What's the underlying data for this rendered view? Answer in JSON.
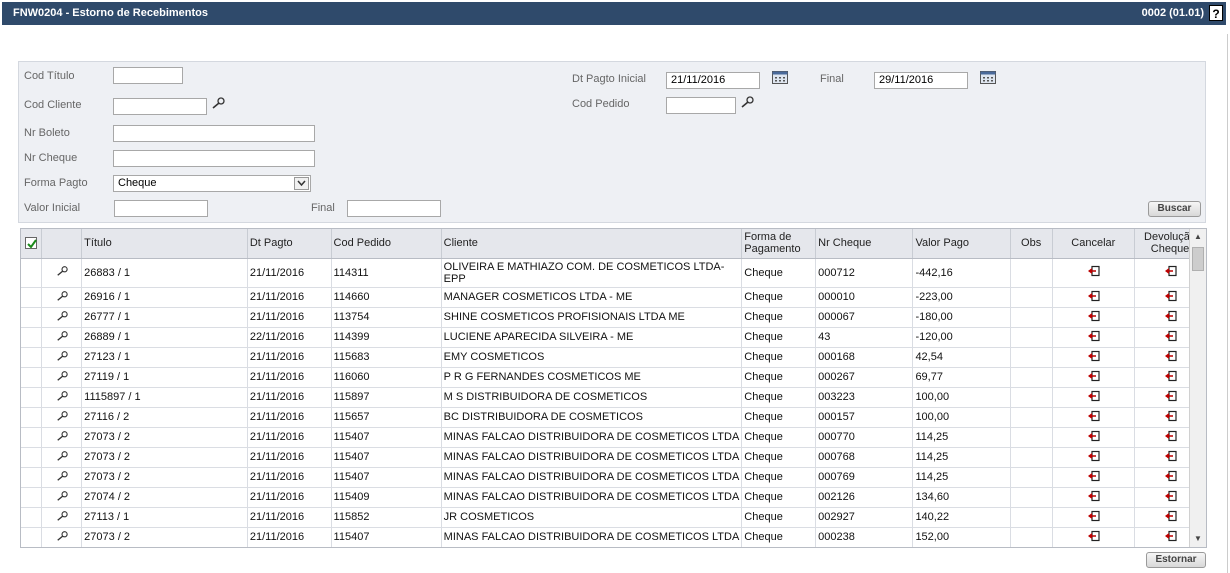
{
  "window": {
    "title": "FNW0204 - Estorno de Recebimentos",
    "code": "0002 (01.01)",
    "help": "?"
  },
  "filters": {
    "cod_titulo": {
      "label": "Cod Título",
      "value": ""
    },
    "cod_cliente": {
      "label": "Cod Cliente",
      "value": ""
    },
    "nr_boleto": {
      "label": "Nr Boleto",
      "value": ""
    },
    "nr_cheque": {
      "label": "Nr Cheque",
      "value": ""
    },
    "forma_pagto": {
      "label": "Forma Pagto",
      "value": "Cheque"
    },
    "valor_inicial": {
      "label": "Valor Inicial",
      "value": ""
    },
    "valor_final": {
      "label": "Final",
      "value": ""
    },
    "dt_pagto_inicial": {
      "label": "Dt Pagto Inicial",
      "value": "21/11/2016"
    },
    "dt_pagto_final": {
      "label": "Final",
      "value": "29/11/2016"
    },
    "cod_pedido": {
      "label": "Cod Pedido",
      "value": ""
    },
    "buscar_label": "Buscar"
  },
  "table": {
    "headers": {
      "titulo": "Título",
      "dt_pagto": "Dt Pagto",
      "cod_pedido": "Cod Pedido",
      "cliente": "Cliente",
      "forma": "Forma de Pagamento",
      "nr_cheque": "Nr Cheque",
      "valor": "Valor Pago",
      "obs": "Obs",
      "cancelar": "Cancelar",
      "devolucao": "Devolução Cheque"
    },
    "rows": [
      {
        "titulo": "26883 / 1",
        "dt": "21/11/2016",
        "pedido": "114311",
        "cliente": "OLIVEIRA E MATHIAZO COM. DE COSMETICOS LTDA-EPP",
        "forma": "Cheque",
        "cheque": "000712",
        "valor": "-442,16",
        "obs": ""
      },
      {
        "titulo": "26916 / 1",
        "dt": "21/11/2016",
        "pedido": "114660",
        "cliente": "MANAGER COSMETICOS LTDA - ME",
        "forma": "Cheque",
        "cheque": "000010",
        "valor": "-223,00",
        "obs": ""
      },
      {
        "titulo": "26777 / 1",
        "dt": "21/11/2016",
        "pedido": "113754",
        "cliente": "SHINE COSMETICOS PROFISIONAIS LTDA ME",
        "forma": "Cheque",
        "cheque": "000067",
        "valor": "-180,00",
        "obs": ""
      },
      {
        "titulo": "26889 / 1",
        "dt": "22/11/2016",
        "pedido": "114399",
        "cliente": "LUCIENE APARECIDA SILVEIRA - ME",
        "forma": "Cheque",
        "cheque": "43",
        "valor": "-120,00",
        "obs": ""
      },
      {
        "titulo": "27123 / 1",
        "dt": "21/11/2016",
        "pedido": "115683",
        "cliente": "EMY COSMETICOS",
        "forma": "Cheque",
        "cheque": "000168",
        "valor": "42,54",
        "obs": ""
      },
      {
        "titulo": "27119 / 1",
        "dt": "21/11/2016",
        "pedido": "116060",
        "cliente": "P R G FERNANDES COSMETICOS ME",
        "forma": "Cheque",
        "cheque": "000267",
        "valor": "69,77",
        "obs": ""
      },
      {
        "titulo": "1115897 / 1",
        "dt": "21/11/2016",
        "pedido": "115897",
        "cliente": "M S DISTRIBUIDORA DE COSMETICOS",
        "forma": "Cheque",
        "cheque": "003223",
        "valor": "100,00",
        "obs": ""
      },
      {
        "titulo": "27116 / 2",
        "dt": "21/11/2016",
        "pedido": "115657",
        "cliente": "BC DISTRIBUIDORA DE COSMETICOS",
        "forma": "Cheque",
        "cheque": "000157",
        "valor": "100,00",
        "obs": ""
      },
      {
        "titulo": "27073 / 2",
        "dt": "21/11/2016",
        "pedido": "115407",
        "cliente": "MINAS FALCAO DISTRIBUIDORA DE COSMETICOS LTDA",
        "forma": "Cheque",
        "cheque": "000770",
        "valor": "114,25",
        "obs": ""
      },
      {
        "titulo": "27073 / 2",
        "dt": "21/11/2016",
        "pedido": "115407",
        "cliente": "MINAS FALCAO DISTRIBUIDORA DE COSMETICOS LTDA",
        "forma": "Cheque",
        "cheque": "000768",
        "valor": "114,25",
        "obs": ""
      },
      {
        "titulo": "27073 / 2",
        "dt": "21/11/2016",
        "pedido": "115407",
        "cliente": "MINAS FALCAO DISTRIBUIDORA DE COSMETICOS LTDA",
        "forma": "Cheque",
        "cheque": "000769",
        "valor": "114,25",
        "obs": ""
      },
      {
        "titulo": "27074 / 2",
        "dt": "21/11/2016",
        "pedido": "115409",
        "cliente": "MINAS FALCAO DISTRIBUIDORA DE COSMETICOS LTDA",
        "forma": "Cheque",
        "cheque": "002126",
        "valor": "134,60",
        "obs": ""
      },
      {
        "titulo": "27113 / 1",
        "dt": "21/11/2016",
        "pedido": "115852",
        "cliente": "JR COSMETICOS",
        "forma": "Cheque",
        "cheque": "002927",
        "valor": "140,22",
        "obs": ""
      },
      {
        "titulo": "27073 / 2",
        "dt": "21/11/2016",
        "pedido": "115407",
        "cliente": "MINAS FALCAO DISTRIBUIDORA DE COSMETICOS LTDA",
        "forma": "Cheque",
        "cheque": "000238",
        "valor": "152,00",
        "obs": ""
      }
    ]
  },
  "estornar_label": "Estornar",
  "icons": {
    "search": "magnifier-icon",
    "calendar": "calendar-icon",
    "row_action": "undo-arrow-icon"
  },
  "colors": {
    "titlebar": "#2f4a6b",
    "filter_bg": "#eef0f4",
    "header_bg": "#e5e7ec"
  }
}
